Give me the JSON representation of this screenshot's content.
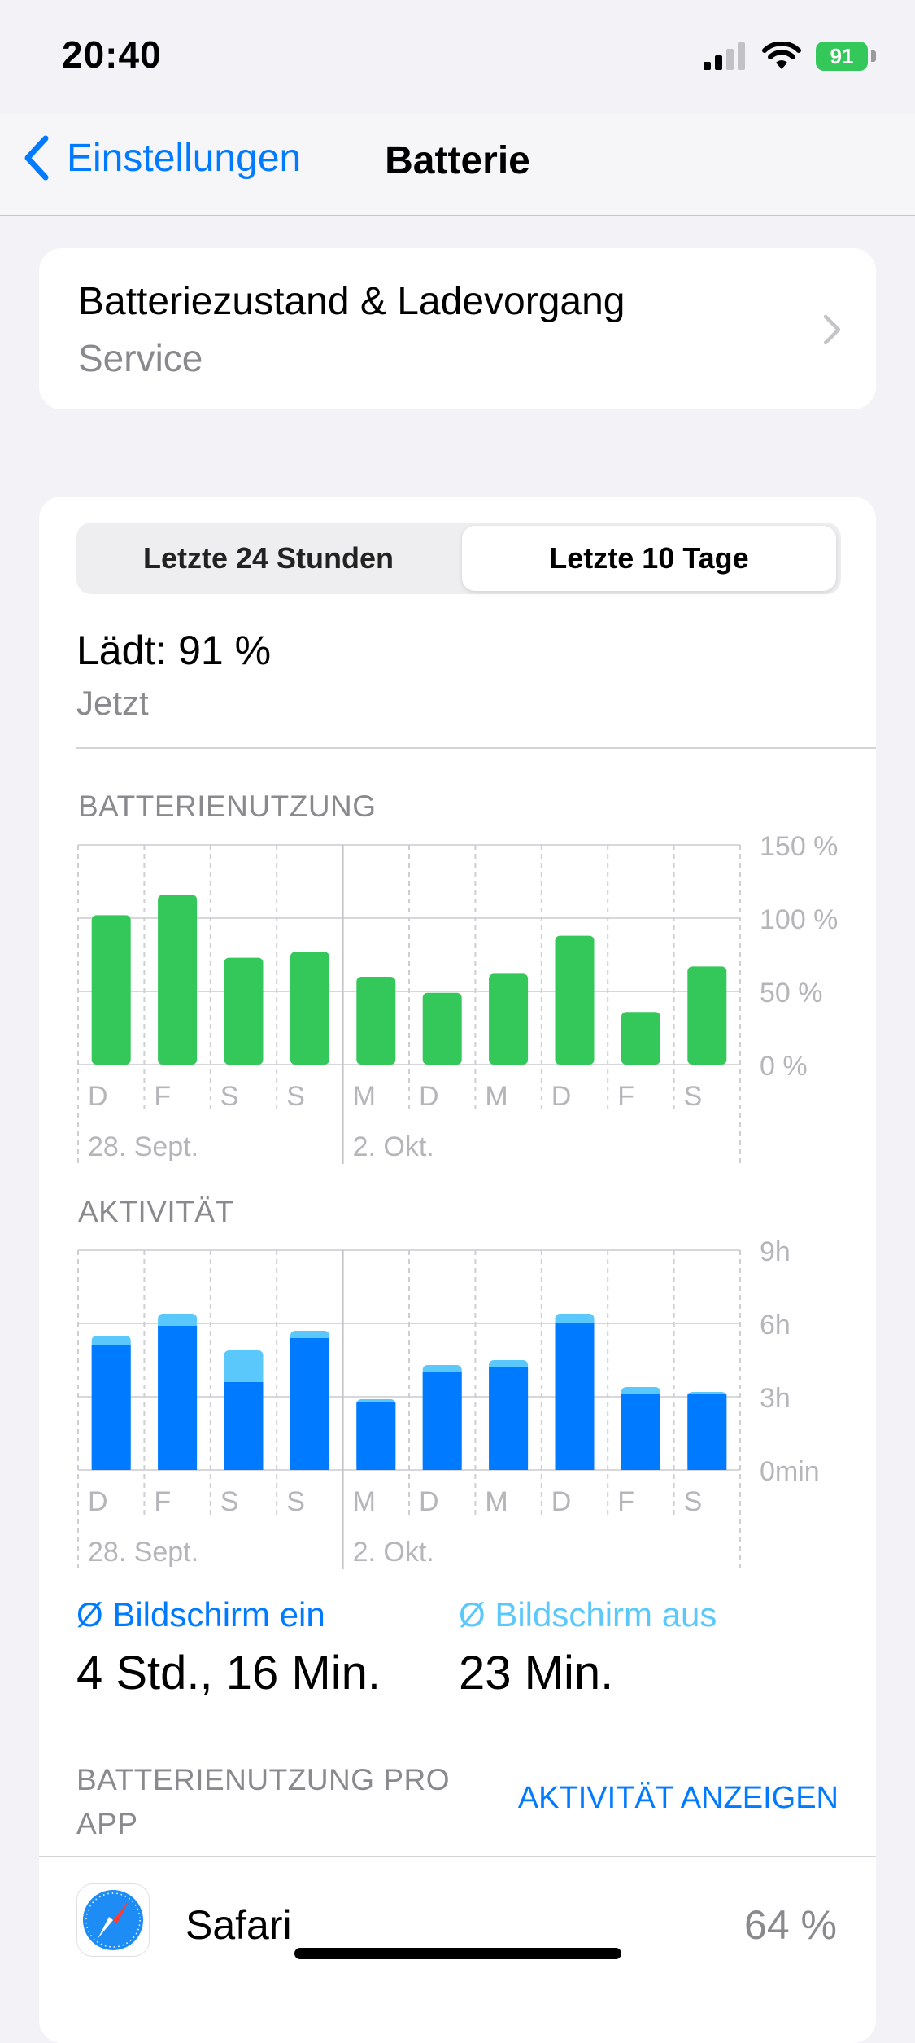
{
  "status_bar": {
    "time": "20:40",
    "battery_percent": "91"
  },
  "nav": {
    "back_label": "Einstellungen",
    "title": "Batterie"
  },
  "health": {
    "title": "Batteriezustand & Ladevorgang",
    "subtitle": "Service"
  },
  "segmented": {
    "left": "Letzte 24 Stunden",
    "right": "Letzte 10 Tage",
    "selected": "Letzte 10 Tage"
  },
  "charge": {
    "status": "Lädt: 91 %",
    "time": "Jetzt"
  },
  "colors": {
    "accent": "#007aff",
    "battery_green": "#34c759",
    "screen_on": "#007aff",
    "screen_off": "#5ac8fa"
  },
  "battery_chart": {
    "label": "BATTERIENUTZUNG",
    "y_ticks": [
      "150 %",
      "100 %",
      "50 %",
      "0 %"
    ],
    "day_labels": [
      "D",
      "F",
      "S",
      "S",
      "M",
      "D",
      "M",
      "D",
      "F",
      "S"
    ],
    "date_labels": [
      "28. Sept.",
      "2. Okt."
    ]
  },
  "activity_chart": {
    "label": "AKTIVITÄT",
    "y_ticks": [
      "9h",
      "6h",
      "3h",
      "0min"
    ],
    "day_labels": [
      "D",
      "F",
      "S",
      "S",
      "M",
      "D",
      "M",
      "D",
      "F",
      "S"
    ],
    "date_labels": [
      "28. Sept.",
      "2. Okt."
    ]
  },
  "chart_data": [
    {
      "type": "bar",
      "title": "BATTERIENUTZUNG",
      "categories": [
        "D",
        "F",
        "S",
        "S",
        "M",
        "D",
        "M",
        "D",
        "F",
        "S"
      ],
      "values": [
        102,
        116,
        73,
        77,
        60,
        49,
        62,
        88,
        36,
        67
      ],
      "ylim": [
        0,
        150
      ],
      "unit": "%"
    },
    {
      "type": "bar",
      "title": "AKTIVITÄT",
      "categories": [
        "D",
        "F",
        "S",
        "S",
        "M",
        "D",
        "M",
        "D",
        "F",
        "S"
      ],
      "series": [
        {
          "name": "Bildschirm ein",
          "values": [
            5.1,
            5.9,
            3.6,
            5.4,
            2.8,
            4.0,
            4.2,
            6.0,
            3.1,
            3.1
          ]
        },
        {
          "name": "Bildschirm aus",
          "values": [
            0.4,
            0.5,
            1.3,
            0.3,
            0.1,
            0.3,
            0.3,
            0.4,
            0.3,
            0.1
          ]
        }
      ],
      "ylim": [
        0,
        9
      ],
      "unit": "h"
    }
  ],
  "summary": {
    "on_label": "Ø Bildschirm ein",
    "on_value": "4 Std., 16 Min.",
    "off_label": "Ø Bildschirm aus",
    "off_value": "23 Min."
  },
  "per_app": {
    "title": "BATTERIENUTZUNG PRO APP",
    "action": "AKTIVITÄT ANZEIGEN"
  },
  "apps": [
    {
      "name": "Safari",
      "percent": "64 %",
      "icon": "safari-icon"
    }
  ]
}
